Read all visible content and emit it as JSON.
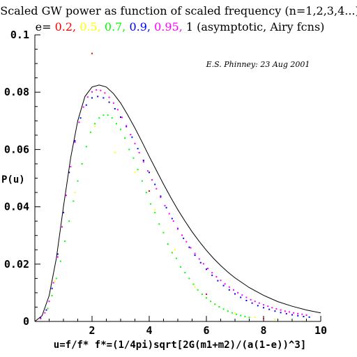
{
  "chart_data": {
    "type": "scatter",
    "title": "Scaled GW power as function of scaled frequency (n=1,2,3,4...)",
    "subtitle_prefix": "e=",
    "subtitle_parts": [
      {
        "text": "0.2,",
        "color": "#ff0000"
      },
      {
        "text": "0.5,",
        "color": "#ffff00"
      },
      {
        "text": "0.7,",
        "color": "#00ff00"
      },
      {
        "text": "0.9,",
        "color": "#0000ff"
      },
      {
        "text": "0.95,",
        "color": "#ff00ff"
      },
      {
        "text": "1 (asymptotic, Airy fcns)",
        "color": "#000000"
      }
    ],
    "annotation": "E.S. Phinney: 23 Aug 2001",
    "ylabel": "P(u)",
    "xlabel": "u=f/f*  f*=(1/4pi)sqrt[2G(m1+m2)/(a(1-e))^3]",
    "xlim": [
      0,
      10
    ],
    "ylim": [
      0,
      0.1
    ],
    "xticks": [
      2,
      4,
      6,
      8,
      10
    ],
    "yticks": [
      0,
      0.02,
      0.04,
      0.06,
      0.08,
      0.1
    ],
    "xtick_labels": [
      "2",
      "4",
      "6",
      "8",
      "10"
    ],
    "ytick_labels": [
      "0",
      "0.02",
      "0.04",
      "0.06",
      "0.08",
      "0.1"
    ],
    "series": [
      {
        "color": "#ff0000",
        "x": [
          2.0,
          4.0,
          6.0,
          8.0
        ],
        "y": [
          0.0935,
          0.0455,
          0.0095,
          0.001
        ]
      },
      {
        "color": "#ffff00",
        "x": [
          0.7,
          1.4,
          2.1,
          2.8,
          3.5,
          4.2,
          4.9,
          5.6,
          6.3,
          7.0,
          7.7,
          8.4
        ],
        "y": [
          0.014,
          0.045,
          0.068,
          0.059,
          0.052,
          0.039,
          0.025,
          0.012,
          0.006,
          0.003,
          0.0015,
          0.0007
        ]
      },
      {
        "color": "#00ff00",
        "x": [
          0.45,
          0.6,
          0.75,
          0.9,
          1.05,
          1.2,
          1.35,
          1.5,
          1.65,
          1.8,
          1.95,
          2.1,
          2.25,
          2.4,
          2.55,
          2.7,
          2.85,
          3.0,
          3.15,
          3.3,
          3.45,
          3.6,
          3.75,
          3.9,
          4.05,
          4.2,
          4.35,
          4.5,
          4.65,
          4.8,
          4.95,
          5.1,
          5.25,
          5.4,
          5.55,
          5.7,
          5.85,
          6.0,
          6.15,
          6.3,
          6.45,
          6.6,
          6.75,
          6.9,
          7.05,
          7.2,
          7.35,
          7.5
        ],
        "y": [
          0.0045,
          0.009,
          0.015,
          0.021,
          0.028,
          0.035,
          0.042,
          0.049,
          0.055,
          0.061,
          0.066,
          0.069,
          0.071,
          0.072,
          0.072,
          0.071,
          0.069,
          0.067,
          0.064,
          0.06,
          0.057,
          0.053,
          0.049,
          0.045,
          0.041,
          0.038,
          0.034,
          0.031,
          0.027,
          0.024,
          0.022,
          0.019,
          0.017,
          0.015,
          0.013,
          0.011,
          0.0095,
          0.0082,
          0.007,
          0.006,
          0.0051,
          0.0043,
          0.0036,
          0.003,
          0.0025,
          0.0021,
          0.0017,
          0.0014
        ]
      },
      {
        "color": "#0000ff",
        "x": [
          0.2,
          0.4,
          0.6,
          0.8,
          1.0,
          1.2,
          1.4,
          1.6,
          1.8,
          2.0,
          2.2,
          2.4,
          2.6,
          2.8,
          3.0,
          3.2,
          3.4,
          3.6,
          3.8,
          4.0,
          4.2,
          4.4,
          4.6,
          4.8,
          5.0,
          5.2,
          5.4,
          5.6,
          5.8,
          6.0,
          6.2,
          6.4,
          6.6,
          6.8,
          7.0,
          7.2,
          7.4,
          7.6,
          7.8,
          8.0,
          8.2,
          8.4,
          8.6,
          8.8,
          9.0,
          9.2,
          9.4,
          9.6
        ],
        "y": [
          0.0012,
          0.004,
          0.0115,
          0.0235,
          0.038,
          0.052,
          0.063,
          0.071,
          0.0755,
          0.078,
          0.0785,
          0.078,
          0.0765,
          0.0742,
          0.0713,
          0.068,
          0.0643,
          0.0603,
          0.0562,
          0.052,
          0.0478,
          0.0437,
          0.0397,
          0.0359,
          0.0323,
          0.029,
          0.0259,
          0.0231,
          0.0205,
          0.0182,
          0.0161,
          0.0142,
          0.0125,
          0.011,
          0.0096,
          0.0084,
          0.0073,
          0.0064,
          0.0055,
          0.0048,
          0.0042,
          0.0036,
          0.0031,
          0.0027,
          0.0023,
          0.002,
          0.0017,
          0.0015
        ]
      },
      {
        "color": "#ff00ff",
        "x": [
          0.2,
          0.35,
          0.5,
          0.65,
          0.8,
          0.95,
          1.1,
          1.25,
          1.4,
          1.55,
          1.7,
          1.85,
          2.0,
          2.15,
          2.3,
          2.45,
          2.6,
          2.75,
          2.9,
          3.05,
          3.2,
          3.35,
          3.5,
          3.65,
          3.8,
          3.95,
          4.1,
          4.25,
          4.4,
          4.55,
          4.7,
          4.85,
          5.0,
          5.15,
          5.3,
          5.45,
          5.6,
          5.75,
          5.9,
          6.05,
          6.2,
          6.35,
          6.5,
          6.65,
          6.8,
          6.95,
          7.1,
          7.25,
          7.4,
          7.55,
          7.7,
          7.85,
          8.0,
          8.15,
          8.3,
          8.45,
          8.6,
          8.75,
          8.9,
          9.05,
          9.2,
          9.35,
          9.5
        ],
        "y": [
          0.001,
          0.003,
          0.007,
          0.0135,
          0.0225,
          0.033,
          0.044,
          0.054,
          0.0625,
          0.0695,
          0.0748,
          0.0783,
          0.0801,
          0.0808,
          0.0806,
          0.0797,
          0.0782,
          0.0762,
          0.0739,
          0.0712,
          0.0683,
          0.0652,
          0.0621,
          0.0589,
          0.0557,
          0.0525,
          0.0494,
          0.0463,
          0.0433,
          0.0404,
          0.0376,
          0.035,
          0.0325,
          0.0301,
          0.0278,
          0.0257,
          0.0237,
          0.0218,
          0.0201,
          0.0185,
          0.017,
          0.0156,
          0.0143,
          0.0131,
          0.012,
          0.011,
          0.01,
          0.0092,
          0.0084,
          0.0076,
          0.007,
          0.0064,
          0.0058,
          0.0053,
          0.0048,
          0.0044,
          0.004,
          0.0036,
          0.0033,
          0.003,
          0.0027,
          0.0025,
          0.0022
        ]
      },
      {
        "color": "#000000",
        "style": "line",
        "x": [
          0.0,
          0.25,
          0.5,
          0.75,
          1.0,
          1.25,
          1.5,
          1.75,
          2.0,
          2.25,
          2.5,
          2.75,
          3.0,
          3.25,
          3.5,
          3.75,
          4.0,
          4.25,
          4.5,
          4.75,
          5.0,
          5.25,
          5.5,
          5.75,
          6.0,
          6.25,
          6.5,
          6.75,
          7.0,
          7.5,
          8.0,
          8.5,
          9.0,
          9.5,
          10.0
        ],
        "y": [
          0.0,
          0.002,
          0.009,
          0.022,
          0.04,
          0.057,
          0.07,
          0.0785,
          0.0818,
          0.0825,
          0.0818,
          0.0795,
          0.0762,
          0.072,
          0.0675,
          0.0626,
          0.0576,
          0.0527,
          0.0479,
          0.0433,
          0.039,
          0.035,
          0.0313,
          0.0279,
          0.0248,
          0.022,
          0.0195,
          0.0172,
          0.0152,
          0.0118,
          0.0091,
          0.0069,
          0.0053,
          0.004,
          0.003
        ]
      }
    ]
  }
}
